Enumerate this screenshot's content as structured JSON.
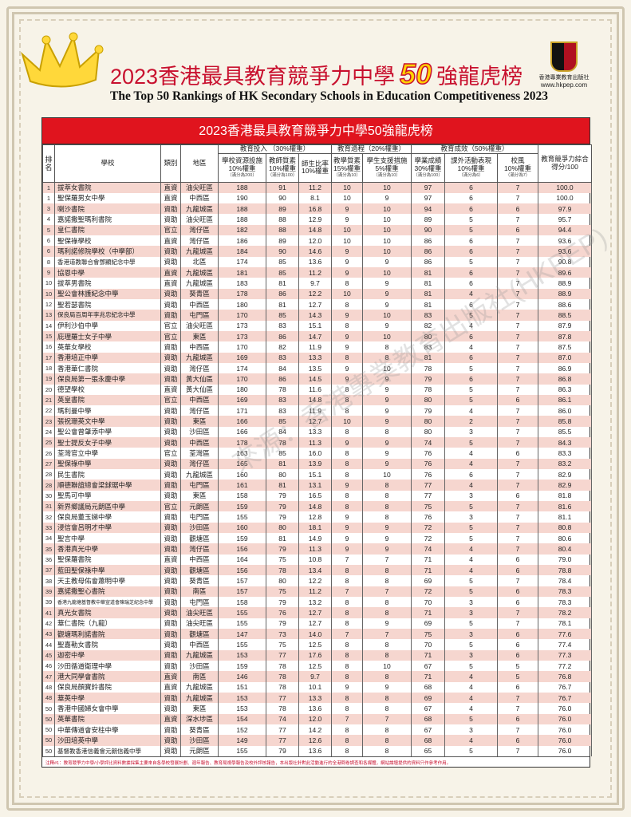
{
  "header": {
    "title_a": "2023香港最具教育競爭力中學",
    "title_num": "50",
    "title_b": "強龍虎榜",
    "subtitle": "The Top 50 Rankings of HK Secondary Schools in Education Competitiveness 2023"
  },
  "logo": {
    "top": "www.HKPEP.com",
    "chars": "致勝知物",
    "publisher": "香港專業教育出版社",
    "url": "www.hkpep.com"
  },
  "watermark": "來源：香港專業教育出版社(HKPEP)",
  "colors": {
    "red": "#e0141e",
    "pink_row": "#f6d6cf",
    "gold": "#ffd200"
  },
  "table": {
    "banner": "2023香港最具教育競爭力中學50強龍虎榜",
    "fixed_headers": [
      "排名",
      "學校",
      "類別",
      "地區"
    ],
    "groups": [
      "教育投入 （30%權重）",
      "教育過程（20%權重）",
      "教育成效（50%權重）"
    ],
    "total_header": "教育競爭力綜合得分/100",
    "sub_headers": [
      {
        "name": "學校資源設施",
        "weight": "10%權重",
        "max": "（滿分為200）"
      },
      {
        "name": "教師質素",
        "weight": "10%權重",
        "max": "（滿分為100）"
      },
      {
        "name": "師生比率",
        "weight": "10%權重",
        "max": ""
      },
      {
        "name": "教學質素",
        "weight": "15%權重",
        "max": "（滿分為10）"
      },
      {
        "name": "學生支援措施",
        "weight": "5%權重",
        "max": "（滿分為10）"
      },
      {
        "name": "學業成績",
        "weight": "30%權重",
        "max": "（滿分為100）"
      },
      {
        "name": "課外活動表現",
        "weight": "10%權重",
        "max": "（滿分為6）"
      },
      {
        "name": "校風",
        "weight": "10%權重",
        "max": "（滿分為7）"
      }
    ],
    "rows": [
      [
        "1",
        "拔萃女書院",
        "直資",
        "油尖旺區",
        "188",
        "91",
        "11.2",
        "10",
        "10",
        "97",
        "6",
        "7",
        "100.0"
      ],
      [
        "1",
        "聖保羅男女中學",
        "直資",
        "中西區",
        "190",
        "90",
        "8.1",
        "10",
        "9",
        "97",
        "6",
        "7",
        "100.0"
      ],
      [
        "3",
        "喇沙書院",
        "資助",
        "九龍城區",
        "188",
        "89",
        "16.8",
        "9",
        "10",
        "94",
        "6",
        "6",
        "97.9"
      ],
      [
        "4",
        "嘉諾撒聖瑪利書院",
        "資助",
        "油尖旺區",
        "188",
        "88",
        "12.9",
        "9",
        "10",
        "89",
        "5",
        "7",
        "95.7"
      ],
      [
        "5",
        "皇仁書院",
        "官立",
        "灣仔區",
        "182",
        "88",
        "14.8",
        "10",
        "10",
        "90",
        "5",
        "6",
        "94.4"
      ],
      [
        "6",
        "聖保祿學校",
        "直資",
        "灣仔區",
        "186",
        "89",
        "12.0",
        "10",
        "10",
        "86",
        "6",
        "7",
        "93.6"
      ],
      [
        "6",
        "瑪利諾修院學校（中學部）",
        "資助",
        "九龍城區",
        "184",
        "90",
        "14.6",
        "9",
        "10",
        "86",
        "6",
        "7",
        "93.6"
      ],
      [
        "8",
        "香港道教聯合會鄧顯紀念中學",
        "資助",
        "北區",
        "174",
        "85",
        "13.6",
        "9",
        "9",
        "86",
        "5",
        "7",
        "90.8"
      ],
      [
        "9",
        "協恩中學",
        "直資",
        "九龍城區",
        "181",
        "85",
        "11.2",
        "9",
        "10",
        "81",
        "6",
        "7",
        "89.6"
      ],
      [
        "10",
        "拔萃男書院",
        "直資",
        "九龍城區",
        "183",
        "81",
        "9.7",
        "8",
        "9",
        "81",
        "6",
        "7",
        "88.9"
      ],
      [
        "10",
        "聖公會林護紀念中學",
        "資助",
        "葵青區",
        "178",
        "86",
        "12.2",
        "10",
        "9",
        "81",
        "4",
        "7",
        "88.9"
      ],
      [
        "12",
        "聖若瑟書院",
        "資助",
        "中西區",
        "180",
        "81",
        "12.7",
        "8",
        "9",
        "81",
        "6",
        "7",
        "88.6"
      ],
      [
        "13",
        "保良局百周年李兆忠紀念中學",
        "資助",
        "屯門區",
        "170",
        "85",
        "14.3",
        "9",
        "10",
        "83",
        "5",
        "7",
        "88.5"
      ],
      [
        "14",
        "伊利沙伯中學",
        "官立",
        "油尖旺區",
        "173",
        "83",
        "15.1",
        "8",
        "9",
        "82",
        "4",
        "7",
        "87.9"
      ],
      [
        "15",
        "庇理羅士女子中學",
        "官立",
        "東區",
        "173",
        "86",
        "14.7",
        "9",
        "10",
        "80",
        "6",
        "7",
        "87.8"
      ],
      [
        "16",
        "英華女學校",
        "資助",
        "中西區",
        "170",
        "82",
        "11.9",
        "9",
        "8",
        "83",
        "4",
        "7",
        "87.5"
      ],
      [
        "17",
        "香港培正中學",
        "資助",
        "九龍城區",
        "169",
        "83",
        "13.3",
        "8",
        "8",
        "81",
        "6",
        "7",
        "87.0"
      ],
      [
        "18",
        "香港華仁書院",
        "資助",
        "灣仔區",
        "174",
        "84",
        "13.5",
        "9",
        "10",
        "78",
        "5",
        "7",
        "86.9"
      ],
      [
        "19",
        "保良局第一張永慶中學",
        "資助",
        "黃大仙區",
        "170",
        "86",
        "14.5",
        "9",
        "9",
        "79",
        "6",
        "7",
        "86.8"
      ],
      [
        "20",
        "德望學校",
        "直資",
        "黃大仙區",
        "180",
        "78",
        "11.6",
        "8",
        "9",
        "78",
        "5",
        "7",
        "86.3"
      ],
      [
        "21",
        "英皇書院",
        "官立",
        "中西區",
        "169",
        "83",
        "14.8",
        "8",
        "9",
        "80",
        "5",
        "6",
        "86.1"
      ],
      [
        "22",
        "瑪利曼中學",
        "資助",
        "灣仔區",
        "171",
        "83",
        "11.9",
        "8",
        "9",
        "79",
        "4",
        "7",
        "86.0"
      ],
      [
        "23",
        "張祝珊英文中學",
        "資助",
        "東區",
        "166",
        "85",
        "12.7",
        "10",
        "9",
        "80",
        "2",
        "7",
        "85.8"
      ],
      [
        "24",
        "聖公會曾肇添中學",
        "資助",
        "沙田區",
        "166",
        "84",
        "13.3",
        "8",
        "8",
        "80",
        "3",
        "7",
        "85.5"
      ],
      [
        "25",
        "聖士提反女子中學",
        "資助",
        "中西區",
        "178",
        "78",
        "11.3",
        "9",
        "9",
        "74",
        "5",
        "7",
        "84.3"
      ],
      [
        "26",
        "荃灣官立中學",
        "官立",
        "荃灣區",
        "163",
        "85",
        "16.0",
        "8",
        "9",
        "76",
        "4",
        "6",
        "83.3"
      ],
      [
        "27",
        "聖保祿中學",
        "資助",
        "灣仔區",
        "165",
        "81",
        "13.9",
        "8",
        "9",
        "76",
        "4",
        "7",
        "83.2"
      ],
      [
        "28",
        "民生書院",
        "資助",
        "九龍城區",
        "160",
        "80",
        "15.1",
        "8",
        "10",
        "76",
        "6",
        "7",
        "82.9"
      ],
      [
        "28",
        "順德聯誼總會梁銶琚中學",
        "資助",
        "屯門區",
        "161",
        "81",
        "13.1",
        "9",
        "8",
        "77",
        "4",
        "7",
        "82.9"
      ],
      [
        "30",
        "聖馬可中學",
        "資助",
        "東區",
        "158",
        "79",
        "16.5",
        "8",
        "8",
        "77",
        "3",
        "6",
        "81.8"
      ],
      [
        "31",
        "新界鄉議局元朗區中學",
        "官立",
        "元朗區",
        "159",
        "79",
        "14.8",
        "8",
        "8",
        "75",
        "5",
        "7",
        "81.6"
      ],
      [
        "32",
        "保良局董玉娣中學",
        "資助",
        "屯門區",
        "155",
        "79",
        "12.8",
        "9",
        "8",
        "76",
        "3",
        "7",
        "81.1"
      ],
      [
        "33",
        "浸信會呂明才中學",
        "資助",
        "沙田區",
        "160",
        "80",
        "18.1",
        "9",
        "9",
        "72",
        "5",
        "7",
        "80.8"
      ],
      [
        "34",
        "聖言中學",
        "資助",
        "觀塘區",
        "159",
        "81",
        "14.9",
        "9",
        "9",
        "72",
        "5",
        "7",
        "80.6"
      ],
      [
        "35",
        "香港真光中學",
        "資助",
        "灣仔區",
        "156",
        "79",
        "11.3",
        "9",
        "9",
        "74",
        "4",
        "7",
        "80.4"
      ],
      [
        "36",
        "聖保羅書院",
        "直資",
        "中西區",
        "164",
        "75",
        "10.8",
        "7",
        "7",
        "71",
        "4",
        "6",
        "79.0"
      ],
      [
        "37",
        "藍田聖保祿中學",
        "資助",
        "觀塘區",
        "156",
        "78",
        "13.4",
        "8",
        "8",
        "71",
        "4",
        "6",
        "78.8"
      ],
      [
        "38",
        "天主教母佑會蕭明中學",
        "資助",
        "葵青區",
        "157",
        "80",
        "12.2",
        "8",
        "8",
        "69",
        "5",
        "7",
        "78.4"
      ],
      [
        "39",
        "嘉諾撒聖心書院",
        "資助",
        "南區",
        "157",
        "75",
        "11.2",
        "7",
        "7",
        "72",
        "5",
        "6",
        "78.3"
      ],
      [
        "39",
        "香港九龍塘基督教中華宣道會陳瑞芝紀念中學",
        "資助",
        "屯門區",
        "158",
        "79",
        "13.2",
        "8",
        "8",
        "70",
        "3",
        "6",
        "78.3"
      ],
      [
        "41",
        "真光女書院",
        "資助",
        "油尖旺區",
        "155",
        "76",
        "12.7",
        "8",
        "8",
        "71",
        "3",
        "7",
        "78.2"
      ],
      [
        "42",
        "華仁書院（九龍）",
        "資助",
        "油尖旺區",
        "155",
        "79",
        "12.7",
        "8",
        "9",
        "69",
        "5",
        "7",
        "78.1"
      ],
      [
        "43",
        "觀塘瑪利諾書院",
        "資助",
        "觀塘區",
        "147",
        "73",
        "14.0",
        "7",
        "7",
        "75",
        "3",
        "6",
        "77.6"
      ],
      [
        "44",
        "聖嘉勒女書院",
        "資助",
        "中西區",
        "155",
        "75",
        "12.5",
        "8",
        "8",
        "70",
        "5",
        "6",
        "77.4"
      ],
      [
        "45",
        "迦密中學",
        "資助",
        "九龍城區",
        "153",
        "77",
        "17.6",
        "8",
        "8",
        "71",
        "3",
        "6",
        "77.3"
      ],
      [
        "46",
        "沙田循道衛理中學",
        "資助",
        "沙田區",
        "159",
        "78",
        "12.5",
        "8",
        "10",
        "67",
        "5",
        "5",
        "77.2"
      ],
      [
        "47",
        "港大同學會書院",
        "直資",
        "南區",
        "146",
        "78",
        "9.7",
        "8",
        "8",
        "71",
        "4",
        "5",
        "76.8"
      ],
      [
        "48",
        "保良局顏寶鈴書院",
        "直資",
        "九龍城區",
        "151",
        "78",
        "10.1",
        "9",
        "9",
        "68",
        "4",
        "6",
        "76.7"
      ],
      [
        "48",
        "華英中學",
        "資助",
        "九龍城區",
        "153",
        "77",
        "13.3",
        "8",
        "8",
        "69",
        "4",
        "7",
        "76.7"
      ],
      [
        "50",
        "香港中國婦女會中學",
        "資助",
        "東區",
        "153",
        "78",
        "13.6",
        "8",
        "8",
        "67",
        "4",
        "7",
        "76.0"
      ],
      [
        "50",
        "英華書院",
        "直資",
        "深水埗區",
        "154",
        "74",
        "12.0",
        "7",
        "7",
        "68",
        "5",
        "6",
        "76.0"
      ],
      [
        "50",
        "中華傳道會安柱中學",
        "資助",
        "葵青區",
        "152",
        "77",
        "14.2",
        "8",
        "8",
        "67",
        "3",
        "7",
        "76.0"
      ],
      [
        "50",
        "沙田培英中學",
        "資助",
        "沙田區",
        "149",
        "77",
        "12.6",
        "8",
        "8",
        "68",
        "4",
        "6",
        "76.0"
      ],
      [
        "50",
        "基督教香港信義會元朗信義中學",
        "資助",
        "元朗區",
        "155",
        "79",
        "13.6",
        "8",
        "8",
        "65",
        "5",
        "7",
        "76.0"
      ]
    ],
    "note": "注釋#1：教育競爭力中學/小學評比資料數據採集主要來自各學校發展計劃、週年報告、教育局視學報告及校外評核報告，本出版社針對此活動進行的全港問卷調查和各媒體，網站論壇提供的資料只作參考作用。"
  }
}
